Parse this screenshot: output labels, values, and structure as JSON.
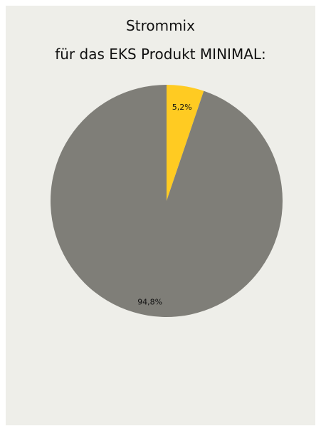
{
  "chart_data": {
    "type": "pie",
    "title": "Strommix",
    "subtitle": "für das EKS Produkt MINIMAL:",
    "slices": [
      {
        "value": 5.2,
        "label": "5,2%",
        "color": "#ffcb22"
      },
      {
        "value": 94.8,
        "label": "94,8%",
        "color": "#7f7e78"
      }
    ]
  }
}
